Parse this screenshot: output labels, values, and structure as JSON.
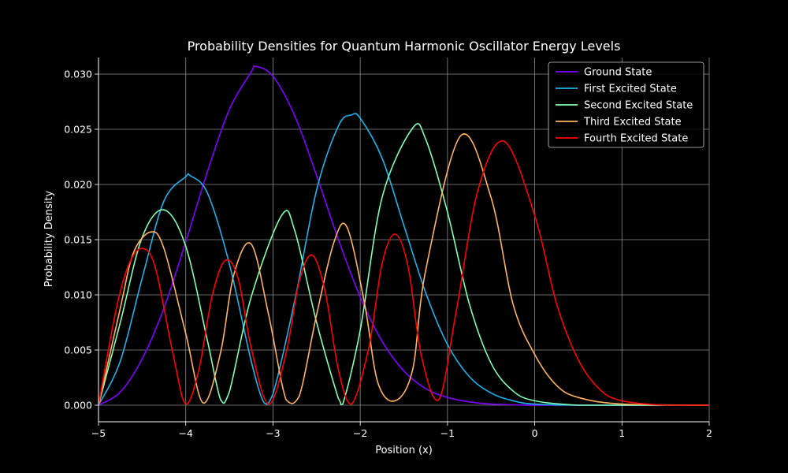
{
  "chart_data": {
    "type": "line",
    "title": "Probability Densities for Quantum Harmonic Oscillator Energy Levels",
    "xlabel": "Position (x)",
    "ylabel": "Probability Density",
    "xlim": [
      -5,
      2
    ],
    "ylim": [
      -0.0015,
      0.0315
    ],
    "x_ticks": [
      -5,
      -4,
      -3,
      -2,
      -1,
      0,
      1,
      2
    ],
    "x_tick_labels": [
      "−5",
      "−4",
      "−3",
      "−2",
      "−1",
      "0",
      "1",
      "2"
    ],
    "y_ticks": [
      0.0,
      0.005,
      0.01,
      0.015,
      0.02,
      0.025,
      0.03
    ],
    "y_tick_labels": [
      "0.000",
      "0.005",
      "0.010",
      "0.015",
      "0.020",
      "0.025",
      "0.030"
    ],
    "grid": true,
    "legend_position": "top-right",
    "series": [
      {
        "name": "Ground State",
        "color": "#8000ff",
        "x": [
          -5,
          -4.75,
          -4.5,
          -4.25,
          -4,
          -3.75,
          -3.5,
          -3.25,
          -3.2,
          -3,
          -2.75,
          -2.5,
          -2.25,
          -2,
          -1.75,
          -1.5,
          -1.25,
          -1,
          -0.75,
          -0.5,
          0,
          0.5,
          1,
          2
        ],
        "y": [
          0.0,
          0.0012,
          0.0042,
          0.0088,
          0.0148,
          0.0212,
          0.0268,
          0.0302,
          0.0307,
          0.0298,
          0.0262,
          0.0208,
          0.015,
          0.0098,
          0.0058,
          0.0031,
          0.0015,
          0.0007,
          0.0003,
          0.0001,
          0.0,
          0.0,
          0.0,
          0.0
        ]
      },
      {
        "name": "First Excited State",
        "color": "#1cb3ec",
        "x": [
          -5,
          -4.75,
          -4.5,
          -4.25,
          -4,
          -3.95,
          -3.75,
          -3.5,
          -3.25,
          -3.1,
          -3,
          -2.75,
          -2.5,
          -2.25,
          -2.1,
          -2,
          -1.75,
          -1.5,
          -1.25,
          -1,
          -0.75,
          -0.5,
          -0.25,
          0,
          0.5,
          1,
          2
        ],
        "y": [
          0.0,
          0.004,
          0.0115,
          0.0185,
          0.0207,
          0.0208,
          0.0192,
          0.0128,
          0.004,
          0.0002,
          0.001,
          0.0095,
          0.0195,
          0.0253,
          0.0263,
          0.026,
          0.0224,
          0.0163,
          0.0102,
          0.0055,
          0.0026,
          0.0011,
          0.0004,
          0.0001,
          0.0,
          0.0,
          0.0
        ]
      },
      {
        "name": "Second Excited State",
        "color": "#80ffb4",
        "x": [
          -5,
          -4.75,
          -4.5,
          -4.25,
          -4,
          -3.75,
          -3.6,
          -3.5,
          -3.25,
          -2.9,
          -2.75,
          -2.5,
          -2.25,
          -2.2,
          -2,
          -1.75,
          -1.4,
          -1.25,
          -1,
          -0.75,
          -0.5,
          -0.25,
          0,
          0.5,
          1,
          2
        ],
        "y": [
          0.0,
          0.0075,
          0.0152,
          0.0177,
          0.0144,
          0.0058,
          0.0005,
          0.0012,
          0.0098,
          0.0172,
          0.0158,
          0.0075,
          0.0006,
          0.0001,
          0.0068,
          0.0188,
          0.0251,
          0.0241,
          0.0175,
          0.0092,
          0.0038,
          0.0013,
          0.0004,
          0.0,
          0.0,
          0.0
        ]
      },
      {
        "name": "Third Excited State",
        "color": "#ffb360",
        "x": [
          -5,
          -4.75,
          -4.6,
          -4.4,
          -4.25,
          -4,
          -3.8,
          -3.6,
          -3.45,
          -3.25,
          -3.05,
          -2.85,
          -2.7,
          -2.5,
          -2.3,
          -2.15,
          -1.95,
          -1.8,
          -1.6,
          -1.4,
          -1.25,
          -0.85,
          -0.5,
          -0.25,
          0,
          0.25,
          0.5,
          1,
          2
        ],
        "y": [
          0.0,
          0.0088,
          0.0138,
          0.0157,
          0.0142,
          0.0065,
          0.0002,
          0.0048,
          0.0118,
          0.0146,
          0.0082,
          0.0005,
          0.0008,
          0.0082,
          0.0148,
          0.0161,
          0.0092,
          0.0021,
          0.0004,
          0.0032,
          0.0122,
          0.0244,
          0.0188,
          0.0092,
          0.0046,
          0.0018,
          0.0007,
          0.0001,
          0.0
        ]
      },
      {
        "name": "Fourth Excited State",
        "color": "#ff0000",
        "x": [
          -5,
          -4.8,
          -4.65,
          -4.5,
          -4.35,
          -4.15,
          -4,
          -3.85,
          -3.7,
          -3.55,
          -3.4,
          -3.25,
          -3.05,
          -2.85,
          -2.7,
          -2.55,
          -2.4,
          -2.25,
          -2.1,
          -1.9,
          -1.75,
          -1.6,
          -1.45,
          -1.3,
          -1.1,
          -0.9,
          -0.65,
          -0.35,
          0,
          0.25,
          0.5,
          0.75,
          1,
          1.5,
          2
        ],
        "y": [
          0.0,
          0.0086,
          0.0128,
          0.0142,
          0.0125,
          0.0048,
          0.0001,
          0.0032,
          0.0098,
          0.0131,
          0.0115,
          0.0052,
          0.0001,
          0.0047,
          0.0112,
          0.0136,
          0.0102,
          0.0032,
          0.0001,
          0.0053,
          0.0128,
          0.0155,
          0.0125,
          0.0045,
          0.0005,
          0.0085,
          0.0195,
          0.0239,
          0.0172,
          0.0092,
          0.0041,
          0.0014,
          0.0004,
          0.0,
          0.0
        ]
      }
    ]
  }
}
